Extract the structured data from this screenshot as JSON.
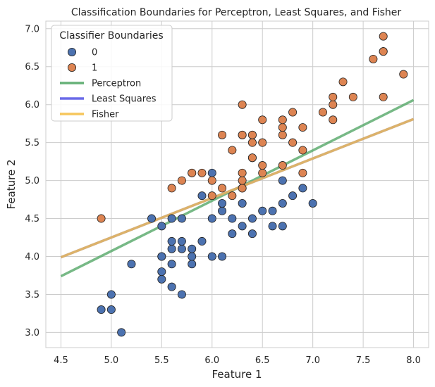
{
  "chart_data": {
    "type": "scatter",
    "title": "Classification Boundaries for Perceptron, Least Squares, and Fisher",
    "xlabel": "Feature 1",
    "ylabel": "Feature 2",
    "xlim": [
      4.35,
      8.15
    ],
    "ylim": [
      2.8,
      7.1
    ],
    "xticks": [
      "4.5",
      "5.0",
      "5.5",
      "6.0",
      "6.5",
      "7.0",
      "7.5",
      "8.0"
    ],
    "yticks": [
      "3.0",
      "3.5",
      "4.0",
      "4.5",
      "5.0",
      "5.5",
      "6.0",
      "6.5",
      "7.0"
    ],
    "grid": true,
    "legend": {
      "title": "Classifier Boundaries",
      "placement": "top-left",
      "entries": [
        {
          "label": "0",
          "kind": "marker",
          "color": "#4c72b0"
        },
        {
          "label": "1",
          "kind": "marker",
          "color": "#dd8452"
        },
        {
          "label": "Perceptron",
          "kind": "line",
          "color": "#55a868"
        },
        {
          "label": "Least Squares",
          "kind": "line",
          "color": "#5a5ae6"
        },
        {
          "label": "Fisher",
          "kind": "line",
          "color": "#f5c04a"
        }
      ]
    },
    "series": [
      {
        "name": "0",
        "color": "#4c72b0",
        "points": [
          [
            4.9,
            3.3
          ],
          [
            5.0,
            3.3
          ],
          [
            5.0,
            3.5
          ],
          [
            5.1,
            3.0
          ],
          [
            5.2,
            3.9
          ],
          [
            5.4,
            4.5
          ],
          [
            5.5,
            3.7
          ],
          [
            5.5,
            3.8
          ],
          [
            5.5,
            4.0
          ],
          [
            5.5,
            4.0
          ],
          [
            5.5,
            4.4
          ],
          [
            5.6,
            3.6
          ],
          [
            5.6,
            3.9
          ],
          [
            5.6,
            4.1
          ],
          [
            5.6,
            4.2
          ],
          [
            5.6,
            4.5
          ],
          [
            5.7,
            3.5
          ],
          [
            5.7,
            4.1
          ],
          [
            5.7,
            4.2
          ],
          [
            5.7,
            4.5
          ],
          [
            5.8,
            3.9
          ],
          [
            5.8,
            4.0
          ],
          [
            5.8,
            4.1
          ],
          [
            5.9,
            4.2
          ],
          [
            5.9,
            4.8
          ],
          [
            6.0,
            4.0
          ],
          [
            6.0,
            4.5
          ],
          [
            6.0,
            5.1
          ],
          [
            6.1,
            4.0
          ],
          [
            6.1,
            4.6
          ],
          [
            6.1,
            4.7
          ],
          [
            6.2,
            4.3
          ],
          [
            6.2,
            4.5
          ],
          [
            6.3,
            4.4
          ],
          [
            6.3,
            4.7
          ],
          [
            6.3,
            4.9
          ],
          [
            6.4,
            4.3
          ],
          [
            6.4,
            4.5
          ],
          [
            6.5,
            4.6
          ],
          [
            6.6,
            4.4
          ],
          [
            6.6,
            4.6
          ],
          [
            6.7,
            4.4
          ],
          [
            6.7,
            4.7
          ],
          [
            6.7,
            5.0
          ],
          [
            6.8,
            4.8
          ],
          [
            6.9,
            4.9
          ],
          [
            7.0,
            4.7
          ]
        ]
      },
      {
        "name": "1",
        "color": "#dd8452",
        "points": [
          [
            4.9,
            4.5
          ],
          [
            5.6,
            4.9
          ],
          [
            5.7,
            5.0
          ],
          [
            5.8,
            5.1
          ],
          [
            5.8,
            5.1
          ],
          [
            5.9,
            5.1
          ],
          [
            6.0,
            4.8
          ],
          [
            6.0,
            5.0
          ],
          [
            6.1,
            4.9
          ],
          [
            6.1,
            5.6
          ],
          [
            6.2,
            4.8
          ],
          [
            6.2,
            5.4
          ],
          [
            6.3,
            4.9
          ],
          [
            6.3,
            5.0
          ],
          [
            6.3,
            5.1
          ],
          [
            6.3,
            5.6
          ],
          [
            6.3,
            5.6
          ],
          [
            6.3,
            6.0
          ],
          [
            6.4,
            5.3
          ],
          [
            6.4,
            5.3
          ],
          [
            6.4,
            5.5
          ],
          [
            6.4,
            5.6
          ],
          [
            6.4,
            5.6
          ],
          [
            6.5,
            5.1
          ],
          [
            6.5,
            5.2
          ],
          [
            6.5,
            5.5
          ],
          [
            6.5,
            5.8
          ],
          [
            6.7,
            5.2
          ],
          [
            6.7,
            5.6
          ],
          [
            6.7,
            5.7
          ],
          [
            6.7,
            5.8
          ],
          [
            6.8,
            5.5
          ],
          [
            6.8,
            5.9
          ],
          [
            6.9,
            5.1
          ],
          [
            6.9,
            5.4
          ],
          [
            6.9,
            5.7
          ],
          [
            7.1,
            5.9
          ],
          [
            7.2,
            5.8
          ],
          [
            7.2,
            6.0
          ],
          [
            7.2,
            6.1
          ],
          [
            7.3,
            6.3
          ],
          [
            7.4,
            6.1
          ],
          [
            7.6,
            6.6
          ],
          [
            7.7,
            6.1
          ],
          [
            7.7,
            6.7
          ],
          [
            7.7,
            6.7
          ],
          [
            7.7,
            6.9
          ],
          [
            7.9,
            6.4
          ]
        ]
      }
    ],
    "lines": [
      {
        "name": "Perceptron",
        "color": "#55a868",
        "x": [
          4.5,
          8.0
        ],
        "y": [
          3.74,
          6.06
        ]
      },
      {
        "name": "Least Squares",
        "color": "#5a5ae6",
        "x": [
          4.5,
          8.0
        ],
        "y": [
          3.99,
          5.81
        ]
      },
      {
        "name": "Fisher",
        "color": "#f5c04a",
        "x": [
          4.5,
          8.0
        ],
        "y": [
          3.99,
          5.81
        ]
      }
    ]
  }
}
